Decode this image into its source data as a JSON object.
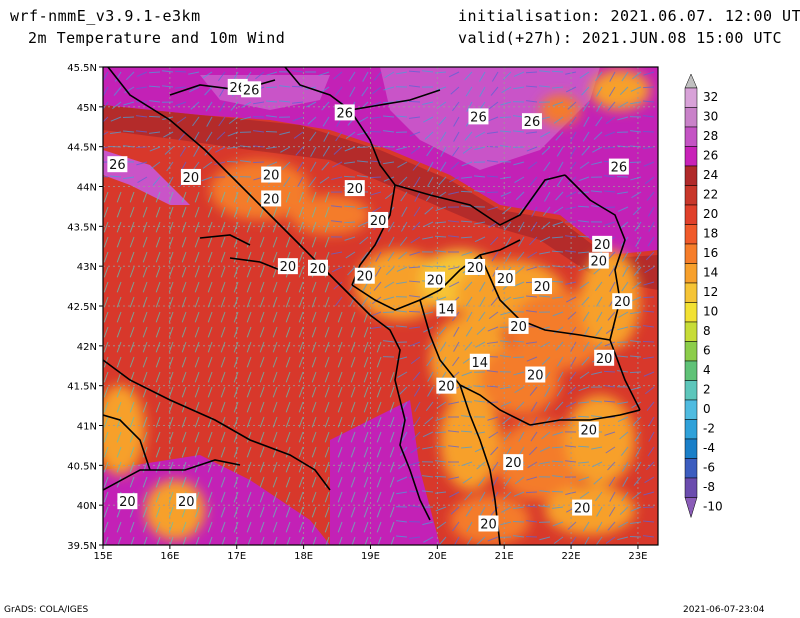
{
  "header": {
    "model": "wrf-nmmE_v3.9.1-e3km",
    "field": "2m Temperature and 10m Wind",
    "init": "initialisation: 2021.06.07. 12:00 UTC",
    "valid": "valid(+27h): 2021.JUN.08 15:00 UTC"
  },
  "footer": {
    "credit": "GrADS: COLA/IGES",
    "timestamp": "2021-06-07-23:04"
  },
  "axes": {
    "lon_ticks": [
      "15E",
      "16E",
      "17E",
      "18E",
      "19E",
      "20E",
      "21E",
      "22E",
      "23E"
    ],
    "lat_ticks": [
      "45.5N",
      "45N",
      "44.5N",
      "44N",
      "43.5N",
      "43N",
      "42.5N",
      "42N",
      "41.5N",
      "41N",
      "40.5N",
      "40N",
      "39.5N"
    ]
  },
  "colorbar": {
    "labels": [
      "32",
      "30",
      "28",
      "26",
      "24",
      "22",
      "20",
      "18",
      "16",
      "14",
      "12",
      "10",
      "8",
      "6",
      "4",
      "2",
      "0",
      "-2",
      "-4",
      "-6",
      "-8",
      "-10"
    ],
    "colors": [
      "#d8a2d8",
      "#c982c9",
      "#c454c4",
      "#c822b8",
      "#b02a2a",
      "#c8372a",
      "#e0402a",
      "#f05a2a",
      "#f67d2a",
      "#f7a02c",
      "#f5c436",
      "#f2e133",
      "#c7dc37",
      "#8ccd4a",
      "#5fc277",
      "#5dc6bb",
      "#4fbbe0",
      "#2fa1d9",
      "#1a7fc8",
      "#3c5dbf",
      "#6b4cae",
      "#8a5cb8"
    ]
  },
  "contour_labels": [
    {
      "text": "26",
      "lon": 17.0,
      "lat": 45.25
    },
    {
      "text": "26",
      "lon": 17.2,
      "lat": 45.22
    },
    {
      "text": "26",
      "lon": 18.6,
      "lat": 44.93
    },
    {
      "text": "26",
      "lon": 20.6,
      "lat": 44.88
    },
    {
      "text": "26",
      "lon": 21.4,
      "lat": 44.82
    },
    {
      "text": "26",
      "lon": 22.7,
      "lat": 44.25
    },
    {
      "text": "26",
      "lon": 15.2,
      "lat": 44.28
    },
    {
      "text": "20",
      "lon": 16.3,
      "lat": 44.12
    },
    {
      "text": "20",
      "lon": 17.5,
      "lat": 44.15
    },
    {
      "text": "20",
      "lon": 18.75,
      "lat": 43.98
    },
    {
      "text": "20",
      "lon": 17.5,
      "lat": 43.85
    },
    {
      "text": "20",
      "lon": 19.1,
      "lat": 43.58
    },
    {
      "text": "20",
      "lon": 17.75,
      "lat": 43.0
    },
    {
      "text": "20",
      "lon": 18.2,
      "lat": 42.98
    },
    {
      "text": "20",
      "lon": 18.9,
      "lat": 42.88
    },
    {
      "text": "20",
      "lon": 19.95,
      "lat": 42.83
    },
    {
      "text": "20",
      "lon": 20.55,
      "lat": 42.99
    },
    {
      "text": "20",
      "lon": 21.0,
      "lat": 42.85
    },
    {
      "text": "20",
      "lon": 21.55,
      "lat": 42.75
    },
    {
      "text": "20",
      "lon": 22.45,
      "lat": 43.28
    },
    {
      "text": "20",
      "lon": 22.4,
      "lat": 43.07
    },
    {
      "text": "20",
      "lon": 22.75,
      "lat": 42.56
    },
    {
      "text": "14",
      "lon": 20.12,
      "lat": 42.47
    },
    {
      "text": "20",
      "lon": 21.2,
      "lat": 42.25
    },
    {
      "text": "14",
      "lon": 20.62,
      "lat": 41.8
    },
    {
      "text": "20",
      "lon": 21.45,
      "lat": 41.64
    },
    {
      "text": "20",
      "lon": 22.48,
      "lat": 41.85
    },
    {
      "text": "20",
      "lon": 20.12,
      "lat": 41.5
    },
    {
      "text": "20",
      "lon": 22.25,
      "lat": 40.95
    },
    {
      "text": "20",
      "lon": 21.12,
      "lat": 40.54
    },
    {
      "text": "20",
      "lon": 15.35,
      "lat": 40.05
    },
    {
      "text": "20",
      "lon": 16.23,
      "lat": 40.05
    },
    {
      "text": "20",
      "lon": 22.15,
      "lat": 39.97
    },
    {
      "text": "20",
      "lon": 20.75,
      "lat": 39.77
    }
  ]
}
